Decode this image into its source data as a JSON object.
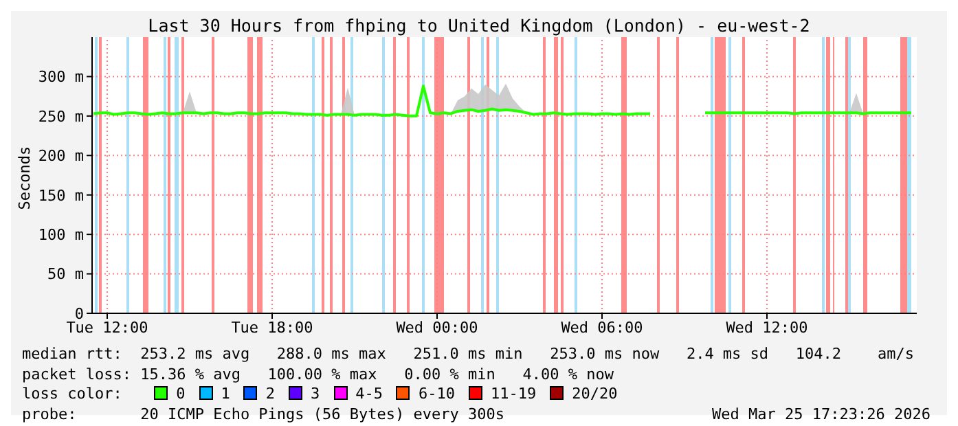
{
  "chart_data": {
    "type": "line",
    "title": "Last 30 Hours from fhping to United Kingdom (London) - eu-west-2",
    "ylabel": "Seconds",
    "legend_title": "loss color:",
    "legend": "bottom",
    "xlim": [
      "2026-03-24T11:27",
      "2026-03-25T17:27"
    ],
    "xticks": [
      {
        "value": "2026-03-24T12:00",
        "label": "Tue 12:00"
      },
      {
        "value": "2026-03-24T18:00",
        "label": "Tue 18:00"
      },
      {
        "value": "2026-03-25T00:00",
        "label": "Wed 00:00"
      },
      {
        "value": "2026-03-25T06:00",
        "label": "Wed 06:00"
      },
      {
        "value": "2026-03-25T12:00",
        "label": "Wed 12:00"
      }
    ],
    "ylim": [
      0,
      350
    ],
    "yticks": [
      {
        "value": 0,
        "label": "0"
      },
      {
        "value": 50,
        "label": "50 m"
      },
      {
        "value": 100,
        "label": "100 m"
      },
      {
        "value": 150,
        "label": "150 m"
      },
      {
        "value": 200,
        "label": "200 m"
      },
      {
        "value": 250,
        "label": "250 m"
      },
      {
        "value": 300,
        "label": "300 m"
      }
    ],
    "grid": true,
    "x": [
      "2026-03-24T11:30",
      "2026-03-24T11:45",
      "2026-03-24T12:00",
      "2026-03-24T12:15",
      "2026-03-24T12:30",
      "2026-03-24T12:45",
      "2026-03-24T13:00",
      "2026-03-24T13:15",
      "2026-03-24T13:30",
      "2026-03-24T13:45",
      "2026-03-24T14:00",
      "2026-03-24T14:15",
      "2026-03-24T14:30",
      "2026-03-24T14:45",
      "2026-03-24T15:00",
      "2026-03-24T15:15",
      "2026-03-24T15:30",
      "2026-03-24T15:45",
      "2026-03-24T16:00",
      "2026-03-24T16:15",
      "2026-03-24T16:30",
      "2026-03-24T16:45",
      "2026-03-24T17:00",
      "2026-03-24T17:15",
      "2026-03-24T17:30",
      "2026-03-24T17:45",
      "2026-03-24T18:00",
      "2026-03-24T18:15",
      "2026-03-24T18:30",
      "2026-03-24T18:45",
      "2026-03-24T19:00",
      "2026-03-24T19:15",
      "2026-03-24T19:30",
      "2026-03-24T19:45",
      "2026-03-24T20:00",
      "2026-03-24T20:15",
      "2026-03-24T20:30",
      "2026-03-24T20:45",
      "2026-03-24T21:00",
      "2026-03-24T21:15",
      "2026-03-24T21:30",
      "2026-03-24T21:45",
      "2026-03-24T22:00",
      "2026-03-24T22:15",
      "2026-03-24T22:30",
      "2026-03-24T22:45",
      "2026-03-24T23:00",
      "2026-03-24T23:15",
      "2026-03-24T23:30",
      "2026-03-24T23:45",
      "2026-03-25T00:00",
      "2026-03-25T00:15",
      "2026-03-25T00:30",
      "2026-03-25T00:45",
      "2026-03-25T01:00",
      "2026-03-25T01:15",
      "2026-03-25T01:30",
      "2026-03-25T01:45",
      "2026-03-25T02:00",
      "2026-03-25T02:15",
      "2026-03-25T02:30",
      "2026-03-25T02:45",
      "2026-03-25T03:00",
      "2026-03-25T03:15",
      "2026-03-25T03:30",
      "2026-03-25T03:45",
      "2026-03-25T04:00",
      "2026-03-25T04:15",
      "2026-03-25T04:30",
      "2026-03-25T04:45",
      "2026-03-25T05:00",
      "2026-03-25T05:15",
      "2026-03-25T05:30",
      "2026-03-25T05:45",
      "2026-03-25T06:00",
      "2026-03-25T06:15",
      "2026-03-25T06:30",
      "2026-03-25T06:45",
      "2026-03-25T07:00",
      "2026-03-25T07:15",
      "2026-03-25T07:30",
      "2026-03-25T07:45",
      "2026-03-25T08:00",
      "2026-03-25T08:15",
      "2026-03-25T08:30",
      "2026-03-25T08:45",
      "2026-03-25T09:00",
      "2026-03-25T09:15",
      "2026-03-25T09:30",
      "2026-03-25T09:45",
      "2026-03-25T10:00",
      "2026-03-25T10:15",
      "2026-03-25T10:30",
      "2026-03-25T10:45",
      "2026-03-25T11:00",
      "2026-03-25T11:15",
      "2026-03-25T11:30",
      "2026-03-25T11:45",
      "2026-03-25T12:00",
      "2026-03-25T12:15",
      "2026-03-25T12:30",
      "2026-03-25T12:45",
      "2026-03-25T13:00",
      "2026-03-25T13:15",
      "2026-03-25T13:30",
      "2026-03-25T13:45",
      "2026-03-25T14:00",
      "2026-03-25T14:15",
      "2026-03-25T14:30",
      "2026-03-25T14:45",
      "2026-03-25T15:00",
      "2026-03-25T15:15",
      "2026-03-25T15:30",
      "2026-03-25T15:45",
      "2026-03-25T16:00",
      "2026-03-25T16:15",
      "2026-03-25T16:30",
      "2026-03-25T16:45",
      "2026-03-25T17:00",
      "2026-03-25T17:15"
    ],
    "series": [
      {
        "name": "0",
        "color": "#26ff00",
        "values": [
          253,
          254,
          254,
          252,
          253,
          254,
          254,
          253,
          252,
          253,
          254,
          253,
          253,
          254,
          254,
          254,
          253,
          254,
          254,
          253,
          253,
          254,
          254,
          253,
          253,
          254,
          254,
          254,
          254,
          253,
          253,
          252,
          252,
          252,
          251,
          252,
          252,
          252,
          251,
          252,
          252,
          252,
          251,
          251,
          252,
          251,
          250,
          250,
          288,
          254,
          253,
          254,
          253,
          256,
          257,
          258,
          256,
          257,
          259,
          257,
          258,
          257,
          256,
          254,
          252,
          253,
          253,
          254,
          253,
          252,
          253,
          253,
          253,
          252,
          253,
          253,
          252,
          253,
          252,
          253,
          253,
          253,
          null,
          null,
          null,
          null,
          null,
          null,
          null,
          254,
          254,
          254,
          254,
          254,
          254,
          254,
          254,
          254,
          254,
          254,
          254,
          254,
          253,
          254,
          254,
          254,
          254,
          254,
          254,
          254,
          254,
          254,
          253,
          254,
          254,
          254,
          254,
          254,
          254,
          254
        ],
        "lower": [
          253,
          254,
          254,
          252,
          253,
          254,
          254,
          253,
          252,
          253,
          254,
          253,
          253,
          254,
          254,
          254,
          253,
          254,
          254,
          253,
          253,
          254,
          254,
          253,
          253,
          254,
          254,
          254,
          254,
          253,
          253,
          252,
          252,
          252,
          251,
          252,
          252,
          252,
          251,
          252,
          252,
          252,
          251,
          251,
          252,
          251,
          250,
          250,
          288,
          254,
          253,
          254,
          253,
          256,
          257,
          258,
          256,
          257,
          259,
          257,
          258,
          257,
          256,
          254,
          252,
          253,
          253,
          254,
          253,
          252,
          253,
          253,
          253,
          252,
          253,
          253,
          252,
          253,
          252,
          253,
          253,
          253,
          null,
          null,
          null,
          null,
          null,
          null,
          null,
          254,
          254,
          254,
          254,
          254,
          254,
          254,
          254,
          254,
          254,
          254,
          254,
          254,
          253,
          254,
          254,
          254,
          254,
          254,
          254,
          254,
          254,
          254,
          253,
          254,
          254,
          254,
          254,
          254,
          254,
          254
        ],
        "upper": [
          253,
          254,
          254,
          252,
          253,
          254,
          254,
          253,
          252,
          253,
          254,
          253,
          253,
          254,
          281,
          254,
          253,
          254,
          254,
          253,
          253,
          254,
          254,
          253,
          253,
          254,
          254,
          254,
          254,
          253,
          253,
          252,
          252,
          252,
          251,
          252,
          252,
          286,
          251,
          252,
          252,
          252,
          251,
          251,
          252,
          251,
          250,
          250,
          288,
          254,
          253,
          254,
          253,
          270,
          275,
          285,
          278,
          290,
          283,
          276,
          291,
          272,
          262,
          254,
          252,
          253,
          253,
          254,
          253,
          252,
          253,
          253,
          253,
          252,
          253,
          253,
          252,
          253,
          252,
          253,
          253,
          253,
          null,
          null,
          null,
          null,
          null,
          null,
          null,
          254,
          254,
          254,
          254,
          254,
          254,
          254,
          254,
          254,
          254,
          254,
          254,
          254,
          253,
          254,
          254,
          254,
          254,
          254,
          254,
          254,
          254,
          279,
          253,
          254,
          254,
          254,
          254,
          254,
          254,
          254
        ]
      },
      {
        "name": "1",
        "color": "#00b8ff",
        "values": [
          null,
          null,
          null,
          null,
          null,
          null,
          null,
          null,
          null,
          null,
          null,
          null,
          null,
          null,
          null,
          null,
          null,
          null,
          null,
          null,
          null,
          null,
          null,
          null,
          null,
          null,
          null,
          null,
          null,
          null,
          null,
          null,
          null,
          null,
          null,
          null,
          null,
          null,
          null,
          null,
          null,
          null,
          null,
          null,
          null,
          null,
          null,
          null,
          null,
          null,
          null,
          null,
          null,
          null,
          null,
          null,
          null,
          null,
          null,
          null,
          null,
          null,
          null,
          null,
          null,
          null,
          null,
          null,
          null,
          null,
          null,
          null,
          null,
          null,
          null,
          null,
          null,
          null,
          null,
          null,
          null,
          null,
          null,
          null,
          null,
          null,
          null,
          null,
          null,
          null,
          null,
          null,
          null,
          null,
          null,
          null,
          null,
          null,
          null,
          null,
          null,
          null,
          null,
          null,
          null,
          null,
          null,
          null,
          null,
          null,
          null,
          null,
          null,
          null,
          null,
          null,
          null,
          null,
          null,
          null
        ]
      },
      {
        "name": "2",
        "color": "#0059ff",
        "values": [
          null,
          null,
          null,
          null,
          null,
          null,
          null,
          null,
          null,
          null,
          null,
          null,
          null,
          null,
          null,
          null,
          null,
          null,
          null,
          null,
          null,
          null,
          null,
          null,
          null,
          null,
          null,
          null,
          null,
          null,
          null,
          null,
          null,
          null,
          null,
          null,
          null,
          null,
          null,
          null,
          null,
          null,
          null,
          null,
          null,
          null,
          null,
          null,
          null,
          null,
          null,
          null,
          null,
          null,
          null,
          null,
          null,
          null,
          null,
          null,
          null,
          null,
          null,
          null,
          null,
          null,
          null,
          null,
          null,
          null,
          null,
          null,
          null,
          null,
          null,
          null,
          null,
          null,
          null,
          null,
          null,
          null,
          null,
          null,
          null,
          null,
          null,
          null,
          null,
          null,
          null,
          null,
          null,
          null,
          null,
          null,
          null,
          null,
          null,
          null,
          null,
          null,
          null,
          null,
          null,
          null,
          null,
          null,
          null,
          null,
          null,
          null,
          null,
          null,
          null,
          null,
          null,
          null,
          null,
          null
        ]
      },
      {
        "name": "3",
        "color": "#5e00ff",
        "values": [
          null,
          null,
          null,
          null,
          null,
          null,
          null,
          null,
          null,
          null,
          null,
          null,
          null,
          null,
          null,
          null,
          null,
          null,
          null,
          null,
          null,
          null,
          null,
          null,
          null,
          null,
          null,
          null,
          null,
          null,
          null,
          null,
          null,
          null,
          null,
          null,
          null,
          null,
          null,
          null,
          null,
          null,
          null,
          null,
          null,
          null,
          null,
          null,
          null,
          null,
          null,
          null,
          null,
          null,
          null,
          null,
          null,
          null,
          null,
          null,
          null,
          null,
          null,
          null,
          null,
          null,
          null,
          null,
          null,
          null,
          null,
          null,
          null,
          null,
          null,
          null,
          null,
          null,
          null,
          null,
          null,
          null,
          null,
          null,
          null,
          null,
          null,
          null,
          null,
          null,
          null,
          null,
          null,
          null,
          null,
          null,
          null,
          null,
          null,
          null,
          null,
          null,
          null,
          null,
          null,
          null,
          null,
          null,
          null,
          null,
          null,
          null,
          null,
          null,
          null,
          null,
          null,
          null,
          null,
          null
        ]
      },
      {
        "name": "4-5",
        "color": "#ff00ff",
        "values": [
          null,
          null,
          null,
          null,
          null,
          null,
          null,
          null,
          null,
          null,
          null,
          null,
          null,
          null,
          null,
          null,
          null,
          null,
          null,
          null,
          null,
          null,
          null,
          null,
          null,
          null,
          null,
          null,
          null,
          null,
          null,
          null,
          null,
          null,
          null,
          null,
          null,
          null,
          null,
          null,
          null,
          null,
          null,
          null,
          null,
          null,
          null,
          null,
          null,
          null,
          null,
          null,
          null,
          null,
          null,
          null,
          null,
          null,
          null,
          null,
          null,
          null,
          null,
          null,
          null,
          null,
          null,
          null,
          null,
          null,
          null,
          null,
          null,
          null,
          null,
          null,
          null,
          null,
          null,
          null,
          null,
          null,
          null,
          null,
          null,
          null,
          null,
          null,
          null,
          null,
          null,
          null,
          null,
          null,
          null,
          null,
          null,
          null,
          null,
          null,
          null,
          null,
          null,
          null,
          null,
          null,
          null,
          null,
          null,
          null,
          null,
          null,
          null,
          null,
          null,
          null,
          null,
          null,
          null,
          null
        ]
      },
      {
        "name": "6-10",
        "color": "#ff5500",
        "values": [
          null,
          null,
          null,
          null,
          null,
          null,
          null,
          null,
          null,
          null,
          null,
          null,
          null,
          null,
          null,
          null,
          null,
          null,
          null,
          null,
          null,
          null,
          null,
          null,
          null,
          null,
          null,
          null,
          null,
          null,
          null,
          null,
          null,
          null,
          null,
          null,
          null,
          null,
          null,
          null,
          null,
          null,
          null,
          null,
          null,
          null,
          null,
          null,
          null,
          null,
          null,
          null,
          null,
          null,
          null,
          null,
          null,
          null,
          null,
          null,
          null,
          null,
          null,
          null,
          null,
          null,
          null,
          null,
          null,
          null,
          null,
          null,
          null,
          null,
          null,
          null,
          null,
          null,
          null,
          null,
          null,
          null,
          null,
          null,
          null,
          null,
          null,
          null,
          null,
          null,
          null,
          null,
          null,
          null,
          null,
          null,
          null,
          null,
          null,
          null,
          null,
          null,
          null,
          null,
          null,
          null,
          null,
          null,
          null,
          null,
          null,
          null,
          null,
          null,
          null,
          null,
          null,
          null,
          null,
          null
        ]
      },
      {
        "name": "11-19",
        "color": "#ff0000",
        "values": [
          null,
          null,
          null,
          null,
          null,
          null,
          null,
          null,
          null,
          null,
          null,
          null,
          null,
          null,
          null,
          null,
          null,
          null,
          null,
          null,
          null,
          null,
          null,
          null,
          null,
          null,
          null,
          null,
          null,
          null,
          null,
          null,
          null,
          null,
          null,
          null,
          null,
          null,
          null,
          null,
          null,
          null,
          null,
          null,
          null,
          null,
          null,
          null,
          null,
          null,
          null,
          null,
          null,
          null,
          null,
          null,
          null,
          null,
          null,
          null,
          null,
          null,
          null,
          null,
          null,
          null,
          null,
          null,
          null,
          null,
          null,
          null,
          null,
          null,
          null,
          null,
          null,
          null,
          null,
          null,
          null,
          null,
          null,
          null,
          null,
          null,
          null,
          null,
          null,
          null,
          null,
          null,
          null,
          null,
          null,
          null,
          null,
          null,
          null,
          null,
          null,
          null,
          null,
          null,
          null,
          null,
          null,
          null,
          null,
          null,
          null,
          null,
          null,
          null,
          null,
          null,
          null,
          null,
          null,
          null
        ]
      },
      {
        "name": "20/20",
        "color": "#a10000",
        "values": [
          null,
          null,
          null,
          null,
          null,
          null,
          null,
          null,
          null,
          null,
          null,
          null,
          null,
          null,
          null,
          null,
          null,
          null,
          null,
          null,
          null,
          null,
          null,
          null,
          null,
          null,
          null,
          null,
          null,
          null,
          null,
          null,
          null,
          null,
          null,
          null,
          null,
          null,
          null,
          null,
          null,
          null,
          null,
          null,
          null,
          null,
          null,
          null,
          null,
          null,
          null,
          null,
          null,
          null,
          null,
          null,
          null,
          null,
          null,
          null,
          null,
          null,
          null,
          null,
          null,
          null,
          null,
          null,
          null,
          null,
          null,
          null,
          null,
          null,
          null,
          null,
          null,
          null,
          null,
          null,
          null,
          null,
          null,
          null,
          null,
          null,
          null,
          null,
          null,
          null,
          null,
          null,
          null,
          null,
          null,
          null,
          null,
          null,
          null,
          null,
          null,
          null,
          null,
          null,
          null,
          null,
          null,
          null,
          null,
          null,
          null,
          null,
          null,
          null,
          null,
          null,
          null,
          null,
          null,
          null
        ]
      }
    ],
    "bands": [
      {
        "axis": "x",
        "from": "2026-03-24T11:42",
        "to": "2026-03-24T11:48",
        "color": "#ff8c8c"
      },
      {
        "axis": "x",
        "from": "2026-03-24T13:18",
        "to": "2026-03-24T13:30",
        "color": "#ff8c8c"
      },
      {
        "axis": "x",
        "from": "2026-03-24T14:12",
        "to": "2026-03-24T14:18",
        "color": "#ff8c8c"
      },
      {
        "axis": "x",
        "from": "2026-03-24T14:42",
        "to": "2026-03-24T14:48",
        "color": "#ff8c8c"
      },
      {
        "axis": "x",
        "from": "2026-03-24T15:48",
        "to": "2026-03-24T15:54",
        "color": "#ff8c8c"
      },
      {
        "axis": "x",
        "from": "2026-03-24T17:06",
        "to": "2026-03-24T17:18",
        "color": "#ff8c8c"
      },
      {
        "axis": "x",
        "from": "2026-03-24T17:27",
        "to": "2026-03-24T17:39",
        "color": "#ff8c8c"
      },
      {
        "axis": "x",
        "from": "2026-03-24T19:48",
        "to": "2026-03-24T19:54",
        "color": "#ff8c8c"
      },
      {
        "axis": "x",
        "from": "2026-03-24T20:06",
        "to": "2026-03-24T20:12",
        "color": "#ff8c8c"
      },
      {
        "axis": "x",
        "from": "2026-03-24T20:33",
        "to": "2026-03-24T20:39",
        "color": "#ff8c8c"
      },
      {
        "axis": "x",
        "from": "2026-03-24T22:24",
        "to": "2026-03-24T22:30",
        "color": "#ff8c8c"
      },
      {
        "axis": "x",
        "from": "2026-03-24T22:54",
        "to": "2026-03-24T23:00",
        "color": "#ff8c8c"
      },
      {
        "axis": "x",
        "from": "2026-03-24T23:54",
        "to": "2026-03-25T00:15",
        "color": "#ff8c8c"
      },
      {
        "axis": "x",
        "from": "2026-03-25T01:06",
        "to": "2026-03-25T01:12",
        "color": "#ff8c8c"
      },
      {
        "axis": "x",
        "from": "2026-03-25T01:48",
        "to": "2026-03-25T01:54",
        "color": "#ff8c8c"
      },
      {
        "axis": "x",
        "from": "2026-03-25T03:51",
        "to": "2026-03-25T03:57",
        "color": "#ff8c8c"
      },
      {
        "axis": "x",
        "from": "2026-03-25T04:15",
        "to": "2026-03-25T04:24",
        "color": "#ff8c8c"
      },
      {
        "axis": "x",
        "from": "2026-03-25T04:30",
        "to": "2026-03-25T04:36",
        "color": "#ff8c8c"
      },
      {
        "axis": "x",
        "from": "2026-03-25T06:42",
        "to": "2026-03-25T06:54",
        "color": "#ff8c8c"
      },
      {
        "axis": "x",
        "from": "2026-03-25T08:00",
        "to": "2026-03-25T08:06",
        "color": "#ff8c8c"
      },
      {
        "axis": "x",
        "from": "2026-03-25T08:42",
        "to": "2026-03-25T08:48",
        "color": "#ff8c8c"
      },
      {
        "axis": "x",
        "from": "2026-03-25T10:06",
        "to": "2026-03-25T10:30",
        "color": "#ff8c8c"
      },
      {
        "axis": "x",
        "from": "2026-03-25T11:06",
        "to": "2026-03-25T11:12",
        "color": "#ff8c8c"
      },
      {
        "axis": "x",
        "from": "2026-03-25T12:57",
        "to": "2026-03-25T13:03",
        "color": "#ff8c8c"
      },
      {
        "axis": "x",
        "from": "2026-03-25T14:09",
        "to": "2026-03-25T14:18",
        "color": "#ff8c8c"
      },
      {
        "axis": "x",
        "from": "2026-03-25T14:24",
        "to": "2026-03-25T14:27",
        "color": "#ff8c8c"
      },
      {
        "axis": "x",
        "from": "2026-03-25T14:51",
        "to": "2026-03-25T14:57",
        "color": "#ff8c8c"
      },
      {
        "axis": "x",
        "from": "2026-03-25T15:30",
        "to": "2026-03-25T15:39",
        "color": "#ff8c8c"
      },
      {
        "axis": "x",
        "from": "2026-03-25T16:51",
        "to": "2026-03-25T17:06",
        "color": "#ff8c8c"
      },
      {
        "axis": "x",
        "from": "2026-03-24T11:33",
        "to": "2026-03-24T11:39",
        "color": "#aadff5"
      },
      {
        "axis": "x",
        "from": "2026-03-24T12:42",
        "to": "2026-03-24T12:48",
        "color": "#aadff5"
      },
      {
        "axis": "x",
        "from": "2026-03-24T14:03",
        "to": "2026-03-24T14:09",
        "color": "#aadff5"
      },
      {
        "axis": "x",
        "from": "2026-03-24T14:27",
        "to": "2026-03-24T14:36",
        "color": "#aadff5"
      },
      {
        "axis": "x",
        "from": "2026-03-24T19:27",
        "to": "2026-03-24T19:33",
        "color": "#aadff5"
      },
      {
        "axis": "x",
        "from": "2026-03-24T20:51",
        "to": "2026-03-24T20:57",
        "color": "#aadff5"
      },
      {
        "axis": "x",
        "from": "2026-03-24T22:00",
        "to": "2026-03-24T22:06",
        "color": "#aadff5"
      },
      {
        "axis": "x",
        "from": "2026-03-24T23:27",
        "to": "2026-03-24T23:33",
        "color": "#aadff5"
      },
      {
        "axis": "x",
        "from": "2026-03-25T01:36",
        "to": "2026-03-25T01:42",
        "color": "#aadff5"
      },
      {
        "axis": "x",
        "from": "2026-03-25T02:09",
        "to": "2026-03-25T02:15",
        "color": "#aadff5"
      },
      {
        "axis": "x",
        "from": "2026-03-25T05:00",
        "to": "2026-03-25T05:06",
        "color": "#aadff5"
      },
      {
        "axis": "x",
        "from": "2026-03-25T09:57",
        "to": "2026-03-25T10:03",
        "color": "#aadff5"
      },
      {
        "axis": "x",
        "from": "2026-03-25T10:36",
        "to": "2026-03-25T10:42",
        "color": "#aadff5"
      },
      {
        "axis": "x",
        "from": "2026-03-25T14:00",
        "to": "2026-03-25T14:06",
        "color": "#aadff5"
      },
      {
        "axis": "x",
        "from": "2026-03-25T14:57",
        "to": "2026-03-25T15:03",
        "color": "#aadff5"
      },
      {
        "axis": "x",
        "from": "2026-03-25T17:06",
        "to": "2026-03-25T17:15",
        "color": "#aadff5"
      }
    ],
    "annotations": [
      "median rtt:  253.2 ms avg   288.0 ms max   251.0 ms min   253.0 ms now   2.4 ms sd   104.2    am/s",
      "packet loss: 15.36 % avg   100.00 % max   0.00 % min   4.00 % now",
      "probe:       20 ICMP Echo Pings (56 Bytes) every 300s",
      "Wed Mar 25 17:23:26 2026"
    ]
  }
}
